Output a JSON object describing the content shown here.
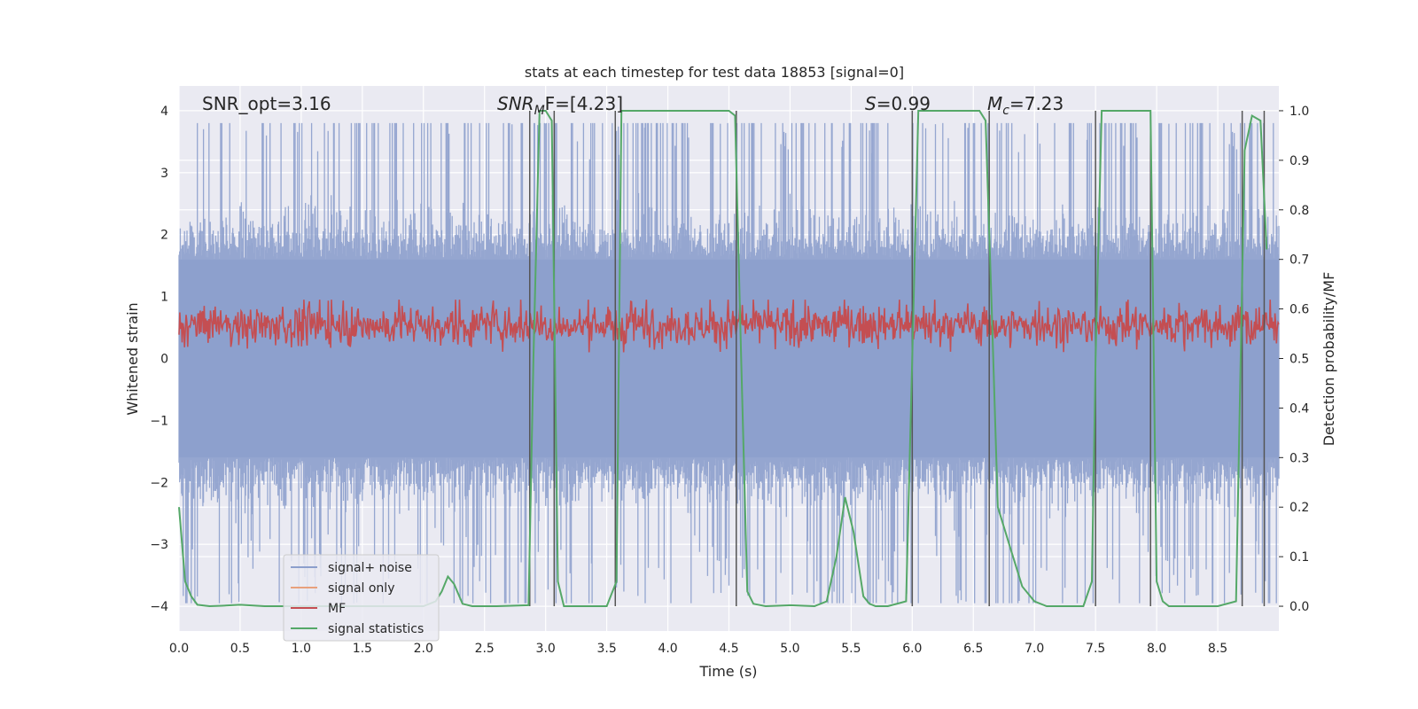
{
  "chart_data": {
    "type": "line",
    "title": "stats at each timestep for test data 18853 [signal=0]",
    "xlabel": "Time (s)",
    "ylabel": "Whitened strain",
    "ylabel_right": "Detection probability/MF",
    "xlim": [
      0.0,
      9.0
    ],
    "ylim": [
      -4.4,
      4.4
    ],
    "ylim_right": [
      -0.05,
      1.05
    ],
    "x_ticks": [
      "0.0",
      "0.5",
      "1.0",
      "1.5",
      "2.0",
      "2.5",
      "3.0",
      "3.5",
      "4.0",
      "4.5",
      "5.0",
      "5.5",
      "6.0",
      "6.5",
      "7.0",
      "7.5",
      "8.0",
      "8.5"
    ],
    "y_ticks": [
      "4",
      "3",
      "2",
      "1",
      "0",
      "−1",
      "−2",
      "−3",
      "−4"
    ],
    "y_ticks_right": [
      "1.0",
      "0.9",
      "0.8",
      "0.7",
      "0.6",
      "0.5",
      "0.4",
      "0.3",
      "0.2",
      "0.1",
      "0.0"
    ],
    "grid": true,
    "annotations": {
      "snr_opt": "SNR_opt=3.16",
      "snr_mf_sym": "SNR",
      "snr_mf_sub": "M",
      "snr_mf_rest": "F=[4.23]",
      "s_sym": "S",
      "s_rest": "=0.99",
      "mc_sym": "M",
      "mc_sub": "c",
      "mc_rest": "=7.23"
    },
    "legend": {
      "position": "lower-left",
      "items": [
        {
          "label": "signal+ noise",
          "color": "#8c9fcc"
        },
        {
          "label": "signal only",
          "color": "#e8a07c"
        },
        {
          "label": "MF",
          "color": "#c44e52"
        },
        {
          "label": "signal statistics",
          "color": "#55a868"
        }
      ]
    },
    "series": [
      {
        "name": "signal+ noise",
        "color": "#8c9fcc",
        "envelope": {
          "upper_typical": 1.6,
          "lower_typical": -1.6,
          "peak": 3.8
        }
      },
      {
        "name": "MF",
        "color": "#c44e52",
        "band": [
          0.1,
          0.95
        ]
      },
      {
        "name": "signal statistics",
        "color": "#55a868",
        "axis": "right",
        "x": [
          0.0,
          0.05,
          0.1,
          0.15,
          0.25,
          0.35,
          0.5,
          0.7,
          1.0,
          1.5,
          2.0,
          2.1,
          2.15,
          2.2,
          2.25,
          2.32,
          2.4,
          2.6,
          2.86,
          2.9,
          2.95,
          3.0,
          3.05,
          3.1,
          3.15,
          3.2,
          3.5,
          3.58,
          3.62,
          3.66,
          4.0,
          4.3,
          4.5,
          4.55,
          4.6,
          4.65,
          4.7,
          4.8,
          5.0,
          5.2,
          5.3,
          5.38,
          5.45,
          5.52,
          5.6,
          5.65,
          5.7,
          5.8,
          5.95,
          6.0,
          6.05,
          6.1,
          6.3,
          6.55,
          6.6,
          6.65,
          6.7,
          6.8,
          6.9,
          7.0,
          7.1,
          7.2,
          7.4,
          7.47,
          7.5,
          7.55,
          7.6,
          7.8,
          7.95,
          8.0,
          8.05,
          8.1,
          8.5,
          8.65,
          8.72,
          8.78,
          8.85,
          8.9
        ],
        "y": [
          0.2,
          0.05,
          0.02,
          0.003,
          0.0,
          0.001,
          0.003,
          0.0,
          0.0,
          0.0,
          0.0,
          0.01,
          0.03,
          0.06,
          0.045,
          0.005,
          0.0,
          0.0,
          0.002,
          0.5,
          1.0,
          1.0,
          0.98,
          0.05,
          0.0,
          0.0,
          0.0,
          0.05,
          1.0,
          1.0,
          1.0,
          1.0,
          1.0,
          0.99,
          0.5,
          0.03,
          0.005,
          0.0,
          0.002,
          0.0,
          0.01,
          0.1,
          0.22,
          0.15,
          0.02,
          0.005,
          0.0,
          0.0,
          0.01,
          0.5,
          1.0,
          1.0,
          1.0,
          1.0,
          0.98,
          0.6,
          0.2,
          0.12,
          0.04,
          0.01,
          0.0,
          0.0,
          0.0,
          0.05,
          0.5,
          1.0,
          1.0,
          1.0,
          1.0,
          0.05,
          0.01,
          0.0,
          0.0,
          0.01,
          0.92,
          0.99,
          0.98,
          0.72
        ]
      }
    ],
    "vertical_lines": [
      2.87,
      3.07,
      3.57,
      4.56,
      6.0,
      6.63,
      7.5,
      7.95,
      8.7,
      8.88
    ]
  }
}
